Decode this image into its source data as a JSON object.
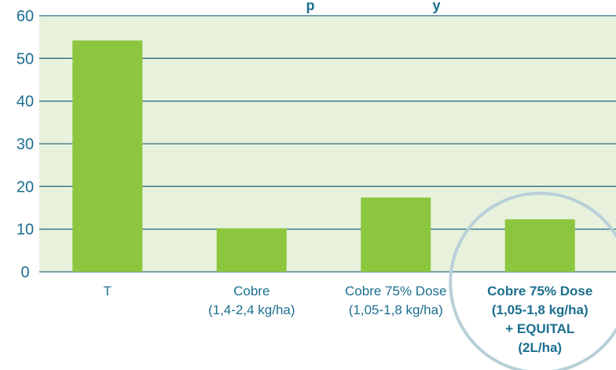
{
  "colors": {
    "plot_background": "#e8f1dc",
    "bar": "#8cc63f",
    "gridline": "#2f6f87",
    "axis_text": "#1b6f8f",
    "highlight_circle": "#b9cfd8"
  },
  "chart_data": {
    "type": "bar",
    "title_partial": "p                              y",
    "categories": [
      {
        "lines": [
          "T"
        ],
        "bold": false
      },
      {
        "lines": [
          "Cobre",
          "(1,4-2,4 kg/ha)"
        ],
        "bold": false
      },
      {
        "lines": [
          "Cobre 75% Dose",
          "(1,05-1,8 kg/ha)"
        ],
        "bold": false
      },
      {
        "lines": [
          "Cobre 75% Dose",
          "(1,05-1,8 kg/ha)",
          "+ EQUITAL",
          "(2L/ha)"
        ],
        "bold": true
      }
    ],
    "values": [
      54.2,
      10.2,
      17.4,
      12.3
    ],
    "ylim": [
      0,
      60
    ],
    "yticks": [
      0,
      10,
      20,
      30,
      40,
      50,
      60
    ],
    "grid": true,
    "highlighted_category_index": 3
  }
}
